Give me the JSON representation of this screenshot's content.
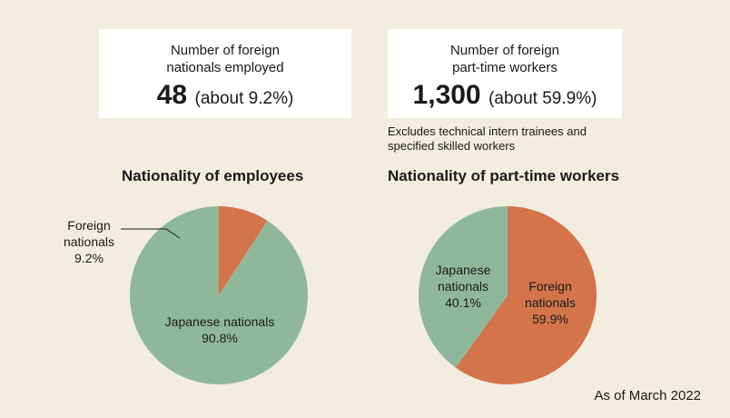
{
  "cards": [
    {
      "label": "Number of foreign\nnationals employed",
      "number": "48",
      "about": "(about 9.2%)"
    },
    {
      "label": "Number of foreign\npart-time workers",
      "number": "1,300",
      "about": "(about 59.9%)"
    }
  ],
  "note": "Excludes technical intern trainees and\nspecified skilled workers",
  "footer": "As of March 2022",
  "colors": {
    "background": "#f3ede0",
    "japanese": "#8fb89a",
    "foreign": "#d4744a"
  },
  "chart_data": [
    {
      "type": "pie",
      "title": "Nationality of employees",
      "slices": [
        {
          "label": "Foreign nationals",
          "value": 9.2,
          "value_label": "9.2%",
          "color": "#d4744a"
        },
        {
          "label": "Japanese nationals",
          "value": 90.8,
          "value_label": "90.8%",
          "color": "#8fb89a"
        }
      ]
    },
    {
      "type": "pie",
      "title": "Nationality of part-time workers",
      "slices": [
        {
          "label": "Foreign nationals",
          "value": 59.9,
          "value_label": "59.9%",
          "color": "#d4744a"
        },
        {
          "label": "Japanese nationals",
          "value": 40.1,
          "value_label": "40.1%",
          "color": "#8fb89a"
        }
      ]
    }
  ]
}
